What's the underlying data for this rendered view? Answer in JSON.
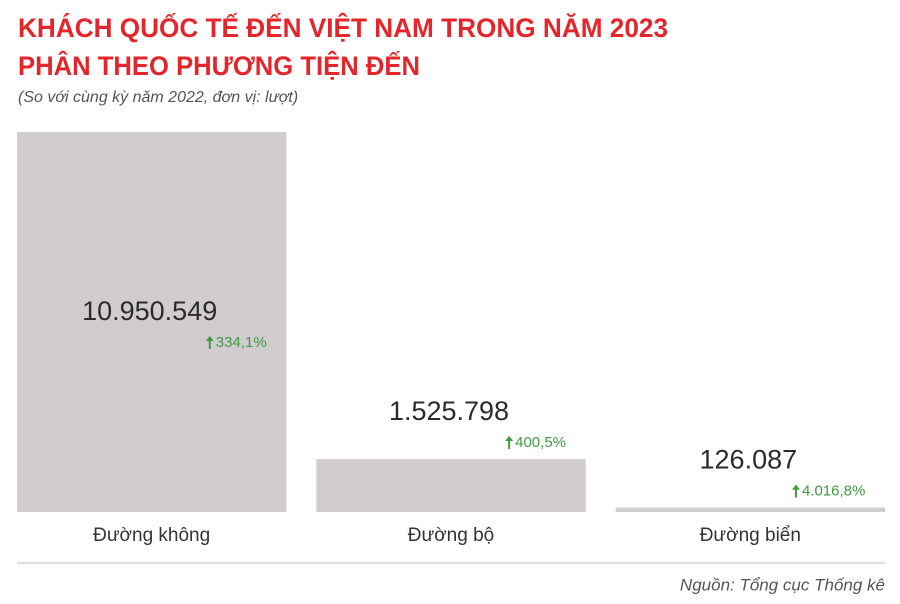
{
  "chart_data": {
    "type": "bar",
    "title": [
      "KHÁCH QUỐC TẾ ĐẾN VIỆT NAM TRONG NĂM 2023",
      "PHÂN THEO PHƯƠNG TIỆN ĐẾN"
    ],
    "subtitle": "(So với cùng kỳ năm 2022, đơn vị: lượt)",
    "categories": [
      "Đường không",
      "Đường bộ",
      "Đường biển"
    ],
    "values": [
      10950549,
      1525798,
      126087
    ],
    "value_labels": [
      "10.950.549",
      "1.525.798",
      "126.087"
    ],
    "change_labels": [
      "334,1%",
      "400,5%",
      "4.016,8%"
    ],
    "color": "#d0cccf",
    "change_color": "#3f9a3f",
    "source": "Nguồn: Tổng cục Thống kê"
  }
}
